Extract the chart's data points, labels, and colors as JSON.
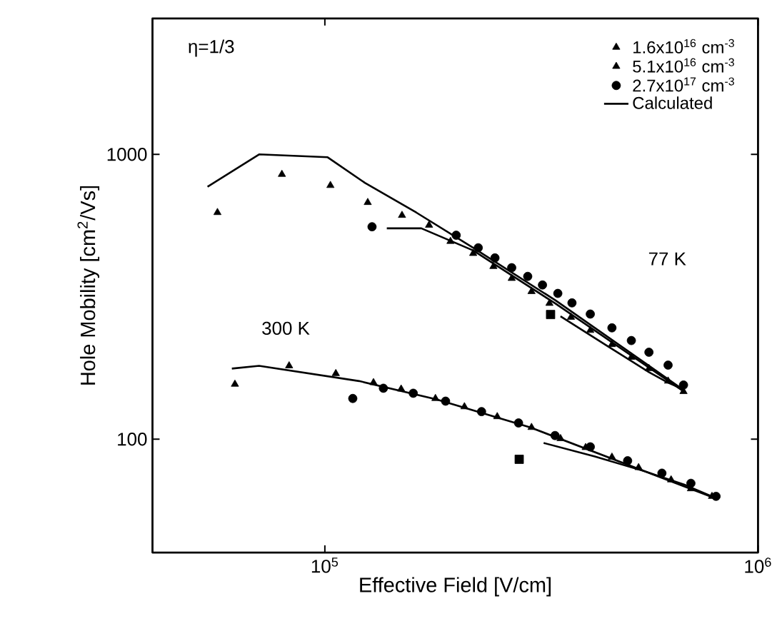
{
  "chart_data": {
    "type": "scatter",
    "xlabel": "Effective Field [V/cm]",
    "ylabel": "Hole Mobility [cm$^{2}$/Vs]",
    "log": "xy",
    "xlim": [
      40000,
      1000000
    ],
    "ylim": [
      40,
      3000
    ],
    "xticks": [
      {
        "value": 100000,
        "label": "10$^{5}$"
      },
      {
        "value": 1000000,
        "label": "10$^{6}$"
      }
    ],
    "yticks": [
      100,
      1000
    ],
    "legend": "top right",
    "annotations": [
      "η=1/3",
      "77 K",
      "300 K"
    ],
    "series": [
      {
        "name": "1.6x10$^{16}$ cm$^{-3}$",
        "marker": "triangle",
        "color": "#000000",
        "x": [
          56500,
          79600,
          103000,
          125600,
          150700,
          62000,
          82700,
          106000,
          129500
        ],
        "values": [
          625,
          851,
          778,
          678,
          611,
          156,
          181,
          170,
          158
        ]
      },
      {
        "name": "5.1x10$^{16}$ cm$^{-3}$",
        "marker": "triangle",
        "color": "#000000",
        "x": [
          174000,
          195000,
          220000,
          245000,
          270000,
          300000,
          330000,
          370000,
          410000,
          460000,
          510000,
          560000,
          620000,
          673000,
          150000,
          180000,
          210000,
          250000,
          300000,
          350000,
          400000,
          460000,
          530000,
          630000,
          700000,
          783000
        ],
        "values": [
          564,
          495,
          449,
          404,
          367,
          330,
          300,
          268,
          241,
          215,
          194,
          177,
          160,
          147,
          150,
          139,
          130,
          120,
          110,
          100.5,
          93.5,
          86.5,
          79.5,
          72,
          67,
          63
        ]
      },
      {
        "name": "2.7x10$^{17}$ cm$^{-3}$",
        "marker": "circle",
        "color": "#000000",
        "x": [
          128500,
          201000,
          226000,
          247000,
          270000,
          294000,
          318000,
          345000,
          372000,
          410000,
          460000,
          510000,
          560000,
          620000,
          673000,
          116000,
          136500,
          160000,
          190000,
          230000,
          280000,
          340000,
          410000,
          500000,
          600000,
          700000,
          800000
        ],
        "values": [
          557,
          520,
          470,
          433,
          400,
          373,
          348,
          325,
          301,
          275,
          246,
          222,
          202,
          182,
          155,
          139,
          151,
          145,
          136,
          125,
          114,
          103,
          94,
          84,
          76,
          70,
          63
        ]
      },
      {
        "name": "Calculated",
        "type": "line",
        "color": "#000000",
        "x": [
          53600,
          70500,
          101500,
          123700,
          162600,
          220000,
          340000,
          673000
        ],
        "values": [
          770,
          1000,
          977,
          795,
          625,
          470,
          308,
          149
        ]
      },
      {
        "marker": "square",
        "color": "#000000",
        "x": [
          332000,
          281000
        ],
        "values": [
          274,
          85
        ]
      },
      {
        "type": "line",
        "color": "#000000",
        "x": [
          139000,
          167000,
          220000,
          340000,
          670000
        ],
        "values": [
          550,
          550,
          460,
          300,
          148
        ]
      },
      {
        "type": "line",
        "color": "#000000",
        "x": [
          350000,
          450000,
          560000,
          620000,
          670000
        ],
        "values": [
          270,
          212,
          172,
          158,
          150
        ]
      },
      {
        "type": "line",
        "color": "#000000",
        "x": [
          61000,
          70500,
          120000,
          181000,
          298000,
          802000
        ],
        "values": [
          177,
          181,
          160,
          138,
          110,
          61.8
        ]
      },
      {
        "type": "line",
        "color": "#000000",
        "x": [
          320000,
          420000,
          550000,
          680000,
          802000
        ],
        "values": [
          97,
          87,
          77,
          69,
          62
        ]
      }
    ]
  }
}
